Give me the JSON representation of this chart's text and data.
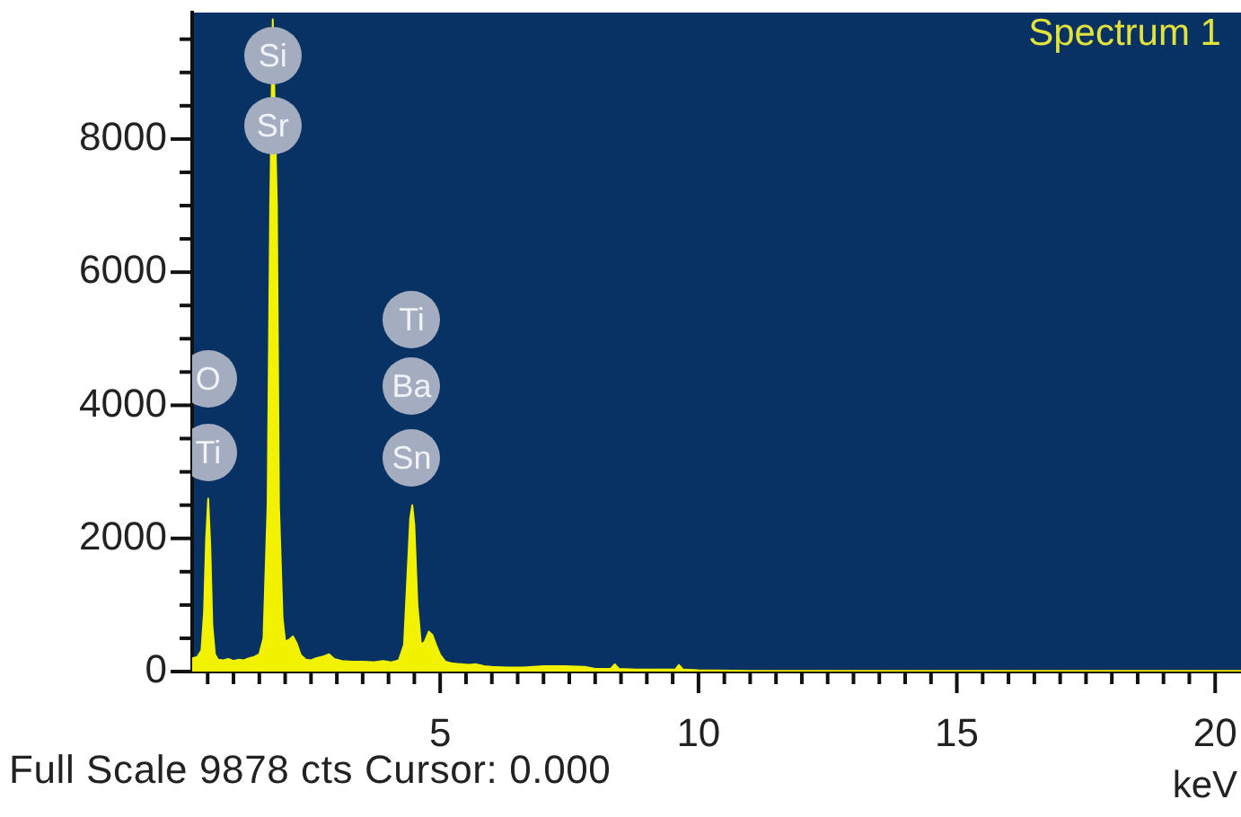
{
  "chart_data": {
    "type": "area",
    "title": "Spectrum 1",
    "xlabel": "keV",
    "annotations": [
      "Full Scale 9878 cts Cursor: 0.000",
      {
        "text": "O",
        "x": 0.51,
        "y": 4400
      },
      {
        "text": "Ti",
        "x": 0.51,
        "y": 3300
      },
      {
        "text": "Si",
        "x": 1.76,
        "y": 9250
      },
      {
        "text": "Sr",
        "x": 1.76,
        "y": 8200
      },
      {
        "text": "Ti",
        "x": 4.45,
        "y": 5300
      },
      {
        "text": "Ba",
        "x": 4.45,
        "y": 4300
      },
      {
        "text": "Sn",
        "x": 4.45,
        "y": 3200
      }
    ],
    "x": [
      0.2,
      0.3,
      0.38,
      0.43,
      0.47,
      0.51,
      0.55,
      0.59,
      0.64,
      0.7,
      0.8,
      0.9,
      1.0,
      1.1,
      1.2,
      1.3,
      1.4,
      1.5,
      1.58,
      1.66,
      1.71,
      1.76,
      1.84,
      1.88,
      1.95,
      2.0,
      2.08,
      2.15,
      2.22,
      2.3,
      2.4,
      2.5,
      2.6,
      2.75,
      2.85,
      2.95,
      3.1,
      3.3,
      3.5,
      3.7,
      3.9,
      4.05,
      4.2,
      4.3,
      4.37,
      4.42,
      4.46,
      4.5,
      4.56,
      4.63,
      4.7,
      4.78,
      4.85,
      4.92,
      5.0,
      5.1,
      5.25,
      5.4,
      5.55,
      5.7,
      5.85,
      6.0,
      6.3,
      6.6,
      7.0,
      7.4,
      7.8,
      8.0,
      8.3,
      8.38,
      8.46,
      8.8,
      9.2,
      9.55,
      9.62,
      9.7,
      10.0,
      11.0,
      12.0,
      14.0,
      16.0,
      18.0,
      20.5
    ],
    "values": [
      200,
      220,
      320,
      900,
      2000,
      2600,
      1900,
      700,
      260,
      180,
      170,
      190,
      160,
      180,
      170,
      200,
      220,
      260,
      500,
      2500,
      7000,
      9800,
      7000,
      2500,
      800,
      450,
      480,
      530,
      430,
      250,
      180,
      170,
      200,
      230,
      260,
      190,
      160,
      150,
      150,
      140,
      160,
      140,
      170,
      400,
      1500,
      2300,
      2500,
      2200,
      1000,
      400,
      450,
      600,
      550,
      400,
      250,
      150,
      120,
      110,
      100,
      110,
      80,
      70,
      60,
      60,
      80,
      80,
      70,
      40,
      40,
      110,
      40,
      30,
      30,
      30,
      100,
      30,
      20,
      10,
      10,
      10,
      10,
      10,
      10
    ],
    "color": "#f2f200",
    "xlim": [
      0.2,
      20.5
    ],
    "xticks": [
      {
        "value": 0.5,
        "label": null
      },
      {
        "value": 1,
        "label": null
      },
      {
        "value": 1.5,
        "label": null
      },
      {
        "value": 2,
        "label": null
      },
      {
        "value": 2.5,
        "label": null
      },
      {
        "value": 3,
        "label": null
      },
      {
        "value": 3.5,
        "label": null
      },
      {
        "value": 4,
        "label": null
      },
      {
        "value": 4.5,
        "label": null
      },
      5,
      {
        "value": 5.5,
        "label": null
      },
      {
        "value": 6,
        "label": null
      },
      {
        "value": 6.5,
        "label": null
      },
      {
        "value": 7,
        "label": null
      },
      {
        "value": 7.5,
        "label": null
      },
      {
        "value": 8,
        "label": null
      },
      {
        "value": 8.5,
        "label": null
      },
      {
        "value": 9,
        "label": null
      },
      {
        "value": 9.5,
        "label": null
      },
      10,
      {
        "value": 10.5,
        "label": null
      },
      {
        "value": 11,
        "label": null
      },
      {
        "value": 11.5,
        "label": null
      },
      {
        "value": 12,
        "label": null
      },
      {
        "value": 12.5,
        "label": null
      },
      {
        "value": 13,
        "label": null
      },
      {
        "value": 13.5,
        "label": null
      },
      {
        "value": 14,
        "label": null
      },
      {
        "value": 14.5,
        "label": null
      },
      15,
      {
        "value": 15.5,
        "label": null
      },
      {
        "value": 16,
        "label": null
      },
      {
        "value": 16.5,
        "label": null
      },
      {
        "value": 17,
        "label": null
      },
      {
        "value": 17.5,
        "label": null
      },
      {
        "value": 18,
        "label": null
      },
      {
        "value": 18.5,
        "label": null
      },
      {
        "value": 19,
        "label": null
      },
      {
        "value": 19.5,
        "label": null
      },
      20
    ],
    "ylim": [
      0,
      9900
    ],
    "yticks": [
      0,
      {
        "value": 500,
        "label": null
      },
      {
        "value": 1000,
        "label": null
      },
      {
        "value": 1500,
        "label": null
      },
      2000,
      {
        "value": 2500,
        "label": null
      },
      {
        "value": 3000,
        "label": null
      },
      {
        "value": 3500,
        "label": null
      },
      4000,
      {
        "value": 4500,
        "label": null
      },
      {
        "value": 5000,
        "label": null
      },
      {
        "value": 5500,
        "label": null
      },
      6000,
      {
        "value": 6500,
        "label": null
      },
      {
        "value": 7000,
        "label": null
      },
      {
        "value": 7500,
        "label": null
      },
      8000,
      {
        "value": 8500,
        "label": null
      },
      {
        "value": 9000,
        "label": null
      },
      {
        "value": 9500,
        "label": null
      }
    ]
  }
}
